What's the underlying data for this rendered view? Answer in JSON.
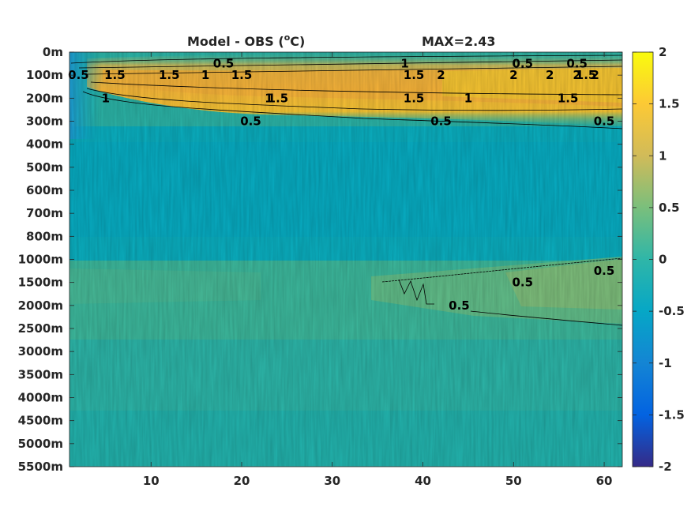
{
  "chart_data": {
    "type": "heatmap",
    "title": "Model - OBS (°C)",
    "title_parts": {
      "main": "Model - OBS (",
      "sup": "o",
      "end": "C)"
    },
    "annotation": "MAX=2.43",
    "x": {
      "lim": [
        1,
        62
      ],
      "ticks": [
        10,
        20,
        30,
        40,
        50,
        60
      ]
    },
    "y": {
      "ticks": [
        "0m",
        "100m",
        "200m",
        "300m",
        "400m",
        "500m",
        "600m",
        "700m",
        "800m",
        "1000m",
        "1500m",
        "2000m",
        "2500m",
        "3000m",
        "3500m",
        "4000m",
        "4500m",
        "5000m",
        "5500m"
      ],
      "scale": "index (nonuniform depth levels)"
    },
    "colorbar": {
      "lim": [
        -2,
        2
      ],
      "ticks": [
        "2",
        "1.5",
        "1",
        "0.5",
        "0",
        "-0.5",
        "-1",
        "-1.5",
        "-2"
      ],
      "colormap": "parula",
      "colors": [
        "#352a87",
        "#0363e1",
        "#1485d4",
        "#06a7c6",
        "#38b99e",
        "#92bf73",
        "#d9ba56",
        "#fcce2e",
        "#f9fb0e"
      ]
    },
    "contour_levels": [
      0.5,
      1,
      1.5,
      2
    ],
    "contour_labels": [
      {
        "text": "0.5",
        "x": 18,
        "level": "0m-100m"
      },
      {
        "text": "1",
        "x": 16,
        "level": "100m"
      },
      {
        "text": "1.5",
        "x": 20,
        "level": "100m"
      },
      {
        "text": "1.5",
        "x": 6,
        "level": "100m"
      },
      {
        "text": "1.5",
        "x": 12,
        "level": "100m"
      },
      {
        "text": "1",
        "x": 5,
        "level": "200m"
      },
      {
        "text": "1.5",
        "x": 24,
        "level": "200m"
      },
      {
        "text": "1",
        "x": 23,
        "level": "200m"
      },
      {
        "text": "0.5",
        "x": 21,
        "level": "300m"
      },
      {
        "text": "1",
        "x": 38,
        "level": "0m-100m"
      },
      {
        "text": "1.5",
        "x": 39,
        "level": "100m"
      },
      {
        "text": "2",
        "x": 42,
        "level": "100m"
      },
      {
        "text": "1.5",
        "x": 39,
        "level": "200m"
      },
      {
        "text": "1",
        "x": 45,
        "level": "200m"
      },
      {
        "text": "0.5",
        "x": 42,
        "level": "300m"
      },
      {
        "text": "0.5",
        "x": 51,
        "level": "0m-100m"
      },
      {
        "text": "0.5",
        "x": 57,
        "level": "0m-100m"
      },
      {
        "text": "2",
        "x": 50,
        "level": "100m"
      },
      {
        "text": "2",
        "x": 54,
        "level": "100m"
      },
      {
        "text": "2",
        "x": 57,
        "level": "100m"
      },
      {
        "text": "2",
        "x": 59,
        "level": "100m"
      },
      {
        "text": "1.5",
        "x": 58,
        "level": "100m"
      },
      {
        "text": "1.5",
        "x": 56,
        "level": "200m"
      },
      {
        "text": "0.5",
        "x": 60,
        "level": "300m"
      },
      {
        "text": "0.5",
        "x": 2,
        "level": "100m"
      },
      {
        "text": "0.5",
        "x": 51,
        "level": "1500m"
      },
      {
        "text": "0.5",
        "x": 60,
        "level": "1000m-1500m"
      },
      {
        "text": "0.5",
        "x": 44,
        "level": "2000m"
      }
    ]
  }
}
